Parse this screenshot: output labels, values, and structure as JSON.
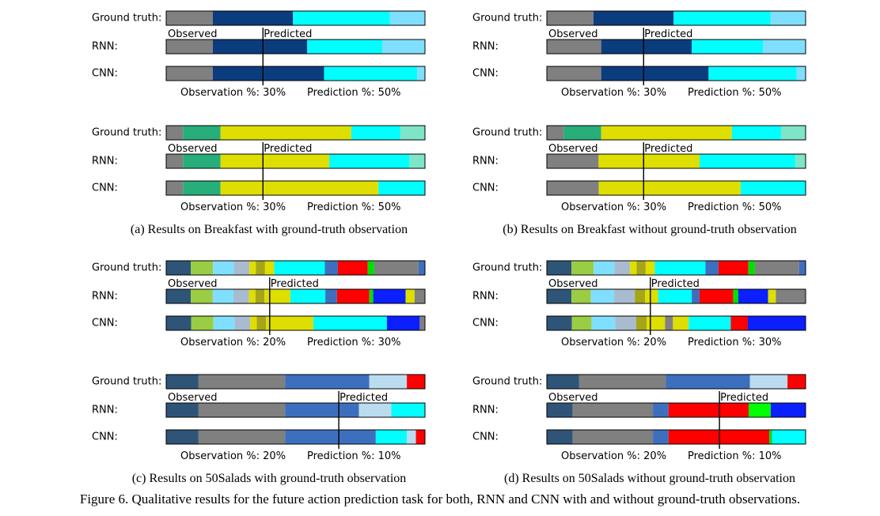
{
  "labels": {
    "gt": "Ground truth:",
    "rnn": "RNN:",
    "cnn": "CNN:",
    "observed": "Observed",
    "predicted": "Predicted"
  },
  "captions": {
    "a": "(a) Results on Breakfast with ground-truth observation",
    "b": "(b) Results on Breakfast without ground-truth observation",
    "c": "(c) Results on 50Salads with ground-truth observation",
    "d": "(d) Results on 50Salads without ground-truth observation"
  },
  "figure_caption": "Figure 6. Qualitative results for the future action prediction task for both, RNN and CNN with and without ground-truth observations.",
  "panels": [
    {
      "id": "a1",
      "obs_text": "Observation %: 30%",
      "pred_text": "Prediction %: 50%",
      "split": 0.374,
      "rows": {
        "gt": [
          [
            "#808080",
            0.18
          ],
          [
            "#0b3d7e",
            0.31
          ],
          [
            "#00ffff",
            0.375
          ],
          [
            "#80dfff",
            0.135
          ]
        ],
        "rnn": [
          [
            "#808080",
            0.18
          ],
          [
            "#0b3d7e",
            0.365
          ],
          [
            "#00ffff",
            0.29
          ],
          [
            "#80dfff",
            0.165
          ]
        ],
        "cnn": [
          [
            "#808080",
            0.18
          ],
          [
            "#0b3d7e",
            0.43
          ],
          [
            "#00ffff",
            0.36
          ],
          [
            "#80dfff",
            0.03
          ]
        ]
      }
    },
    {
      "id": "b1",
      "obs_text": "Observation %: 30%",
      "pred_text": "Prediction %: 50%",
      "split": 0.374,
      "rows": {
        "gt": [
          [
            "#808080",
            0.18
          ],
          [
            "#0b3d7e",
            0.31
          ],
          [
            "#00ffff",
            0.375
          ],
          [
            "#80dfff",
            0.135
          ]
        ],
        "rnn": [
          [
            "#808080",
            0.21
          ],
          [
            "#0b3d7e",
            0.35
          ],
          [
            "#00ffff",
            0.275
          ],
          [
            "#80dfff",
            0.165
          ]
        ],
        "cnn": [
          [
            "#808080",
            0.21
          ],
          [
            "#0b3d7e",
            0.415
          ],
          [
            "#00ffff",
            0.34
          ],
          [
            "#80dfff",
            0.035
          ]
        ]
      }
    },
    {
      "id": "a2",
      "obs_text": "Observation %: 30%",
      "pred_text": "Prediction %: 50%",
      "split": 0.374,
      "rows": {
        "gt": [
          [
            "#808080",
            0.065
          ],
          [
            "#27ae7a",
            0.145
          ],
          [
            "#dede00",
            0.505
          ],
          [
            "#00ffff",
            0.19
          ],
          [
            "#7fe5c8",
            0.095
          ]
        ],
        "rnn": [
          [
            "#808080",
            0.065
          ],
          [
            "#27ae7a",
            0.145
          ],
          [
            "#dede00",
            0.42
          ],
          [
            "#00ffff",
            0.31
          ],
          [
            "#7fe5c8",
            0.06
          ]
        ],
        "cnn": [
          [
            "#808080",
            0.065
          ],
          [
            "#27ae7a",
            0.145
          ],
          [
            "#dede00",
            0.61
          ],
          [
            "#00ffff",
            0.18
          ]
        ]
      }
    },
    {
      "id": "b2",
      "obs_text": "Observation %: 30%",
      "pred_text": "Prediction %: 50%",
      "split": 0.374,
      "rows": {
        "gt": [
          [
            "#808080",
            0.065
          ],
          [
            "#27ae7a",
            0.145
          ],
          [
            "#dede00",
            0.505
          ],
          [
            "#00ffff",
            0.19
          ],
          [
            "#7fe5c8",
            0.095
          ]
        ],
        "rnn": [
          [
            "#808080",
            0.2
          ],
          [
            "#dede00",
            0.39
          ],
          [
            "#00ffff",
            0.37
          ],
          [
            "#7fe5c8",
            0.04
          ]
        ],
        "cnn": [
          [
            "#808080",
            0.2
          ],
          [
            "#dede00",
            0.545
          ],
          [
            "#00ffff",
            0.25
          ]
        ]
      }
    },
    {
      "id": "c1",
      "obs_text": "Observation %: 20%",
      "pred_text": "Prediction %: 30%",
      "split": 0.4,
      "rows": {
        "gt": [
          [
            "#2e5577",
            0.095
          ],
          [
            "#9acd44",
            0.085
          ],
          [
            "#80dfff",
            0.08
          ],
          [
            "#a9bccf",
            0.06
          ],
          [
            "#dede00",
            0.025
          ],
          [
            "#a5a51a",
            0.035
          ],
          [
            "#dede00",
            0.035
          ],
          [
            "#00ffff",
            0.195
          ],
          [
            "#3c70bf",
            0.05
          ],
          [
            "#ff0000",
            0.115
          ],
          [
            "#00e000",
            0.025
          ],
          [
            "#808080",
            0.17
          ],
          [
            "#3c70bf",
            0.025
          ]
        ],
        "rnn": [
          [
            "#2e5577",
            0.095
          ],
          [
            "#9acd44",
            0.085
          ],
          [
            "#80dfff",
            0.08
          ],
          [
            "#a9bccf",
            0.06
          ],
          [
            "#dede00",
            0.025
          ],
          [
            "#a5a51a",
            0.035
          ],
          [
            "#dede00",
            0.1
          ],
          [
            "#00ffff",
            0.135
          ],
          [
            "#3c70bf",
            0.045
          ],
          [
            "#ff0000",
            0.125
          ],
          [
            "#00e000",
            0.015
          ],
          [
            "#0b1fff",
            0.125
          ],
          [
            "#dede00",
            0.035
          ],
          [
            "#808080",
            0.04
          ]
        ],
        "cnn": [
          [
            "#2e5577",
            0.095
          ],
          [
            "#9acd44",
            0.085
          ],
          [
            "#80dfff",
            0.08
          ],
          [
            "#a9bccf",
            0.06
          ],
          [
            "#dede00",
            0.025
          ],
          [
            "#a5a51a",
            0.035
          ],
          [
            "#dede00",
            0.18
          ],
          [
            "#00ffff",
            0.28
          ],
          [
            "#0b1fff",
            0.125
          ],
          [
            "#808080",
            0.02
          ]
        ]
      }
    },
    {
      "id": "d1",
      "obs_text": "Observation %: 20%",
      "pred_text": "Prediction %: 30%",
      "split": 0.4,
      "rows": {
        "gt": [
          [
            "#2e5577",
            0.095
          ],
          [
            "#9acd44",
            0.085
          ],
          [
            "#80dfff",
            0.08
          ],
          [
            "#a9bccf",
            0.06
          ],
          [
            "#dede00",
            0.025
          ],
          [
            "#a5a51a",
            0.035
          ],
          [
            "#dede00",
            0.035
          ],
          [
            "#00ffff",
            0.195
          ],
          [
            "#3c70bf",
            0.05
          ],
          [
            "#ff0000",
            0.115
          ],
          [
            "#00e000",
            0.025
          ],
          [
            "#808080",
            0.17
          ],
          [
            "#3c70bf",
            0.025
          ]
        ],
        "rnn": [
          [
            "#2e5577",
            0.095
          ],
          [
            "#9acd44",
            0.075
          ],
          [
            "#80dfff",
            0.09
          ],
          [
            "#a9bccf",
            0.08
          ],
          [
            "#a5a51a",
            0.04
          ],
          [
            "#dede00",
            0.05
          ],
          [
            "#00ffff",
            0.13
          ],
          [
            "#3c70bf",
            0.03
          ],
          [
            "#ff0000",
            0.13
          ],
          [
            "#00e000",
            0.02
          ],
          [
            "#0b1fff",
            0.115
          ],
          [
            "#dede00",
            0.03
          ],
          [
            "#808080",
            0.115
          ]
        ],
        "cnn": [
          [
            "#2e5577",
            0.095
          ],
          [
            "#9acd44",
            0.075
          ],
          [
            "#80dfff",
            0.09
          ],
          [
            "#a9bccf",
            0.08
          ],
          [
            "#a5a51a",
            0.04
          ],
          [
            "#dede00",
            0.07
          ],
          [
            "#808080",
            0.03
          ],
          [
            "#dede00",
            0.06
          ],
          [
            "#00ffff",
            0.16
          ],
          [
            "#ff0000",
            0.065
          ],
          [
            "#0b1fff",
            0.22
          ]
        ]
      }
    },
    {
      "id": "c2",
      "obs_text": "Observation %: 20%",
      "pred_text": "Prediction %: 10%",
      "split": 0.667,
      "rows": {
        "gt": [
          [
            "#2e5577",
            0.125
          ],
          [
            "#808080",
            0.335
          ],
          [
            "#3c70bf",
            0.325
          ],
          [
            "#bbdcee",
            0.145
          ],
          [
            "#ff0000",
            0.07
          ]
        ],
        "rnn": [
          [
            "#2e5577",
            0.125
          ],
          [
            "#808080",
            0.335
          ],
          [
            "#3c70bf",
            0.285
          ],
          [
            "#bbdcee",
            0.125
          ],
          [
            "#00ffff",
            0.13
          ]
        ],
        "cnn": [
          [
            "#2e5577",
            0.125
          ],
          [
            "#808080",
            0.335
          ],
          [
            "#3c70bf",
            0.35
          ],
          [
            "#00ffff",
            0.12
          ],
          [
            "#bbdcee",
            0.035
          ],
          [
            "#ff0000",
            0.035
          ]
        ]
      }
    },
    {
      "id": "d2",
      "obs_text": "Observation %: 20%",
      "pred_text": "Prediction %: 10%",
      "split": 0.667,
      "rows": {
        "gt": [
          [
            "#2e5577",
            0.125
          ],
          [
            "#808080",
            0.335
          ],
          [
            "#3c70bf",
            0.325
          ],
          [
            "#bbdcee",
            0.145
          ],
          [
            "#ff0000",
            0.07
          ]
        ],
        "rnn": [
          [
            "#2e5577",
            0.1
          ],
          [
            "#808080",
            0.31
          ],
          [
            "#3c70bf",
            0.06
          ],
          [
            "#ff0000",
            0.31
          ],
          [
            "#00ff00",
            0.085
          ],
          [
            "#0b1fff",
            0.135
          ]
        ],
        "cnn": [
          [
            "#2e5577",
            0.1
          ],
          [
            "#808080",
            0.31
          ],
          [
            "#3c70bf",
            0.06
          ],
          [
            "#ff0000",
            0.39
          ],
          [
            "#00e000",
            0.01
          ],
          [
            "#00ffff",
            0.13
          ]
        ]
      }
    }
  ]
}
